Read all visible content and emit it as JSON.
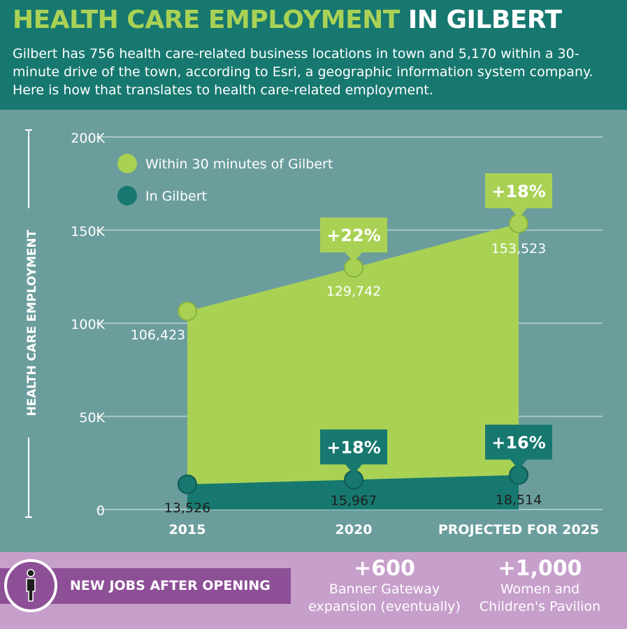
{
  "header": {
    "title_part1": "HEALTH CARE EMPLOYMENT",
    "title_part2": "IN GILBERT",
    "intro": "Gilbert has 756 health care-related business locations in town and 5,170 within a 30-minute drive of the town, according to Esri, a geographic information system company. Here is how that translates to health care-related employment."
  },
  "colors": {
    "header_bg": "#17786f",
    "chart_bg": "#6b9d9d",
    "green": "#a9d255",
    "teal": "#17786f",
    "purple": "#8d4f96",
    "lilac": "#c79fcb"
  },
  "chart_data": {
    "type": "area",
    "ylabel": "HEALTH CARE EMPLOYMENT",
    "ylim": [
      0,
      200000
    ],
    "yticks": [
      0,
      50000,
      100000,
      150000,
      200000
    ],
    "ytick_labels": [
      "0",
      "50K",
      "100K",
      "150K",
      "200K"
    ],
    "categories": [
      "2015",
      "2020",
      "PROJECTED FOR 2025"
    ],
    "grid": true,
    "legend_position": "top-left",
    "series": [
      {
        "name": "Within 30 minutes of Gilbert",
        "color": "#a9d255",
        "values": [
          106423,
          129742,
          153523
        ],
        "value_labels": [
          "106,423",
          "129,742",
          "153,523"
        ],
        "change_labels": [
          "",
          "+22%",
          "+18%"
        ]
      },
      {
        "name": "In Gilbert",
        "color": "#17786f",
        "values": [
          13526,
          15967,
          18514
        ],
        "value_labels": [
          "13,526",
          "15,967",
          "18,514"
        ],
        "change_labels": [
          "",
          "+18%",
          "+16%"
        ]
      }
    ]
  },
  "footer": {
    "label": "NEW JOBS AFTER OPENING",
    "person_icon": "person-icon",
    "stats": [
      {
        "value": "+600",
        "line1": "Banner Gateway",
        "line2": "expansion (eventually)"
      },
      {
        "value": "+1,000",
        "line1": "Women and",
        "line2": "Children's Pavilion"
      }
    ]
  }
}
